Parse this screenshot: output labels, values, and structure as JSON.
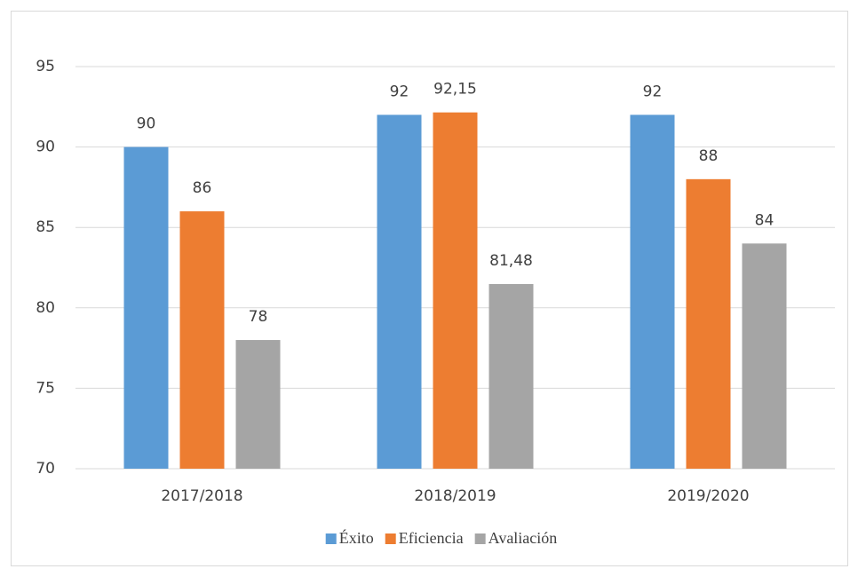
{
  "chart_data": {
    "type": "bar",
    "categories": [
      "2017/2018",
      "2018/2019",
      "2019/2020"
    ],
    "series": [
      {
        "name": "Éxito",
        "color": "#5b9bd5",
        "values": [
          90,
          92,
          92
        ]
      },
      {
        "name": "Eficiencia",
        "color": "#ed7d31",
        "values": [
          86,
          92.15,
          88
        ],
        "value_labels": [
          "86",
          "92,15",
          "88"
        ]
      },
      {
        "name": "Avaliación",
        "color": "#a5a5a5",
        "values": [
          78,
          81.48,
          84
        ],
        "value_labels": [
          "78",
          "81,48",
          "84"
        ]
      }
    ],
    "ylim": [
      70,
      95
    ],
    "yticks": [
      70,
      75,
      80,
      85,
      90,
      95
    ],
    "grid": true,
    "legend": "bottom"
  }
}
